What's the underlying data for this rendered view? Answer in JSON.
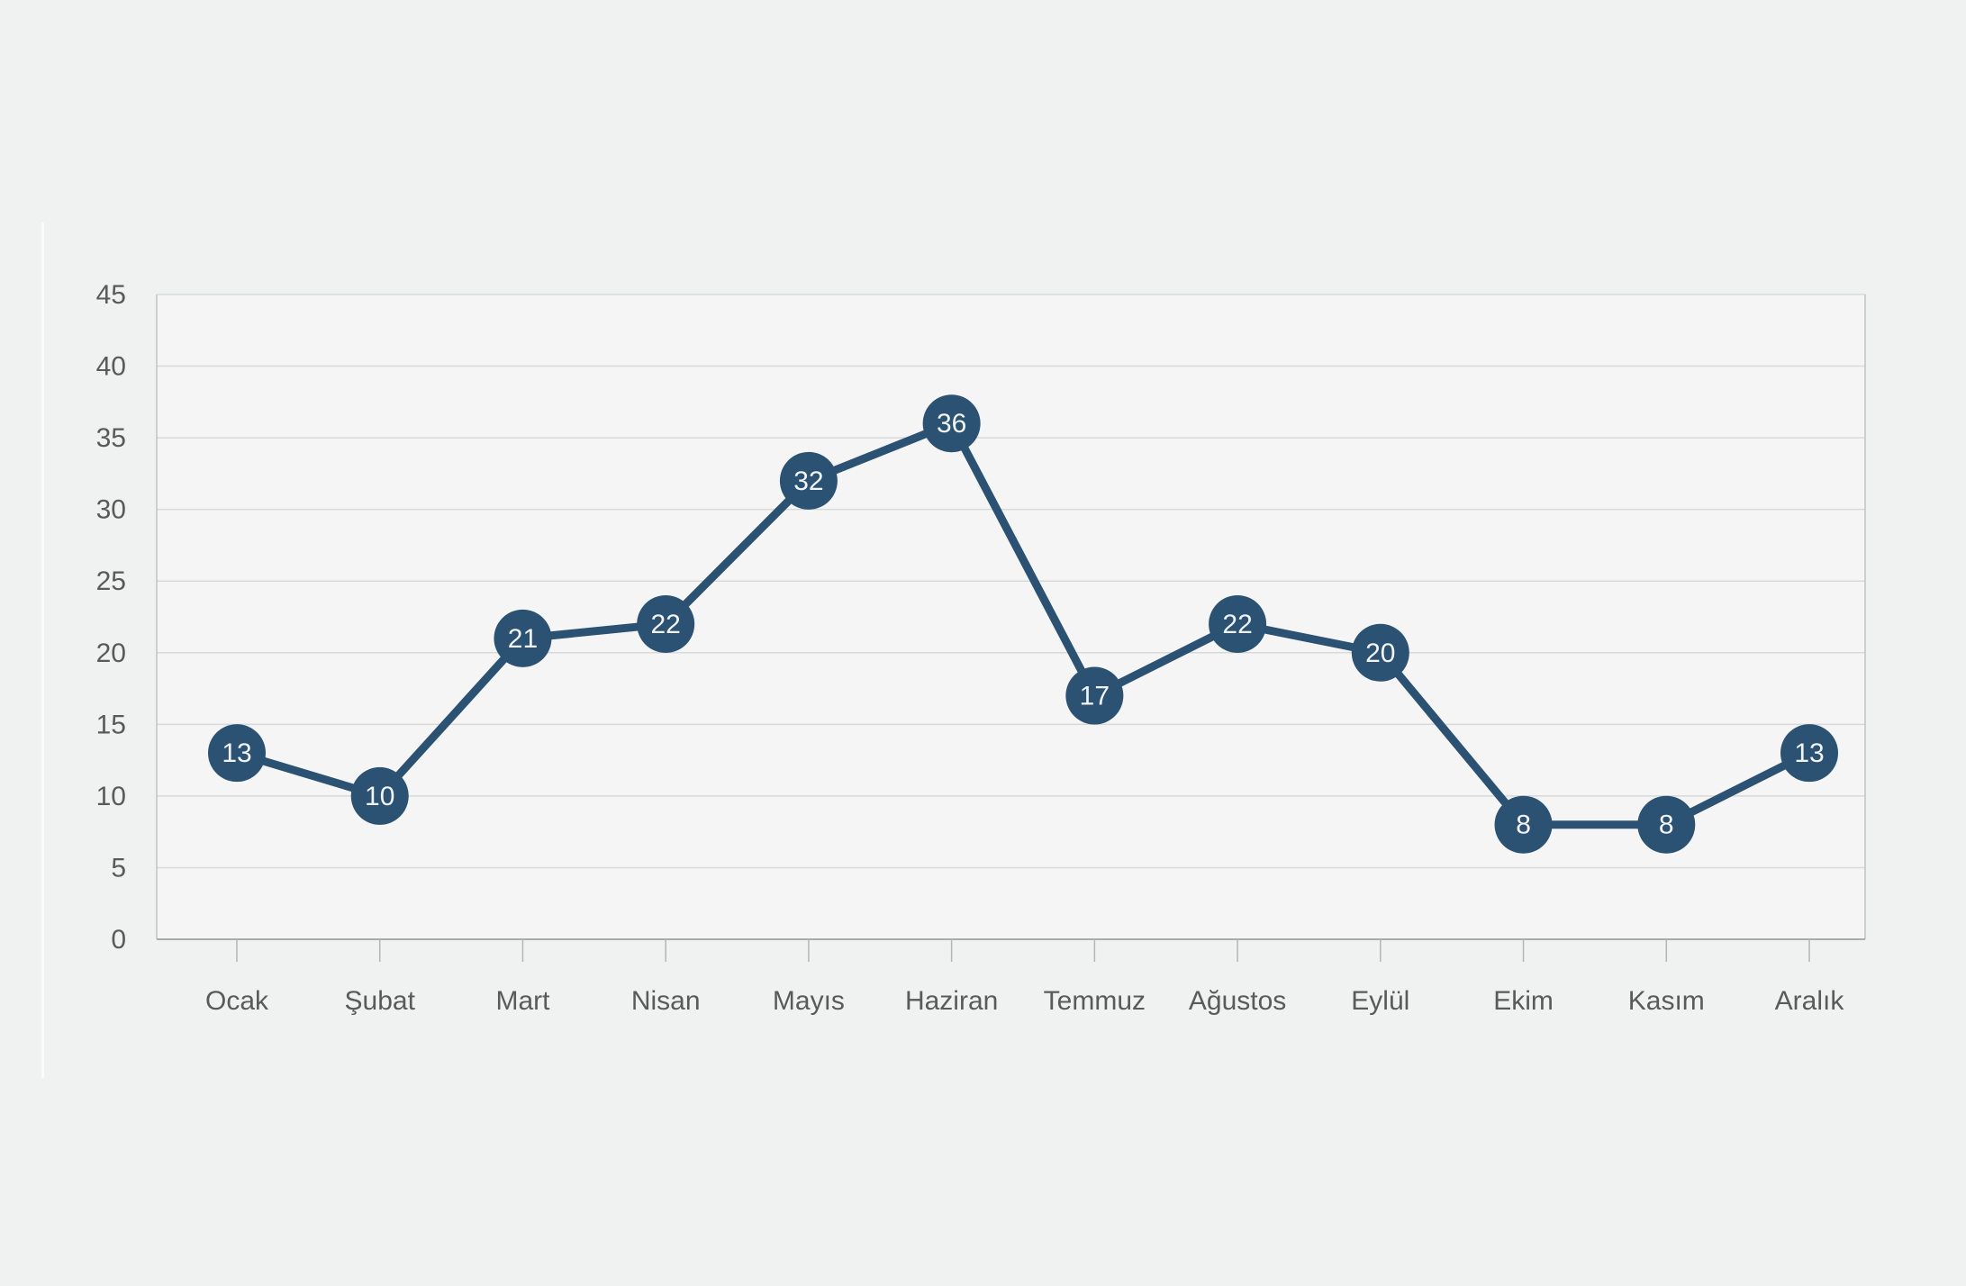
{
  "chart_data": {
    "type": "line",
    "title": "",
    "xlabel": "",
    "ylabel": "",
    "categories": [
      "Ocak",
      "Şubat",
      "Mart",
      "Nisan",
      "Mayıs",
      "Haziran",
      "Temmuz",
      "Ağustos",
      "Eylül",
      "Ekim",
      "Kasım",
      "Aralık"
    ],
    "values": [
      13,
      10,
      21,
      22,
      32,
      36,
      17,
      22,
      20,
      8,
      8,
      13
    ],
    "marker_labels": [
      "13",
      "10",
      "21",
      "22",
      "32",
      "36",
      "17",
      "22",
      "20",
      "8",
      "8",
      "13"
    ],
    "ylim": [
      0,
      45
    ],
    "yticks": [
      0,
      5,
      10,
      15,
      20,
      25,
      30,
      35,
      40,
      45
    ],
    "ytick_labels": [
      "0",
      "5",
      "10",
      "15",
      "20",
      "25",
      "30",
      "35",
      "40",
      "45"
    ],
    "grid": true,
    "legend_position": "none"
  },
  "colors": {
    "page_bg": "#f0f1f1",
    "plot_bg": "#f5f5f5",
    "gridline": "#d8d9d9",
    "plot_side_border": "#c2c3c4",
    "axis_baseline": "#a9aaab",
    "tick": "#b4b5b6",
    "axis_text": "#595a5a",
    "series_line": "#2c5273",
    "marker_fill": "#2c5273",
    "marker_text": "#f1f3f5",
    "divider_line": "#fafbfb"
  }
}
